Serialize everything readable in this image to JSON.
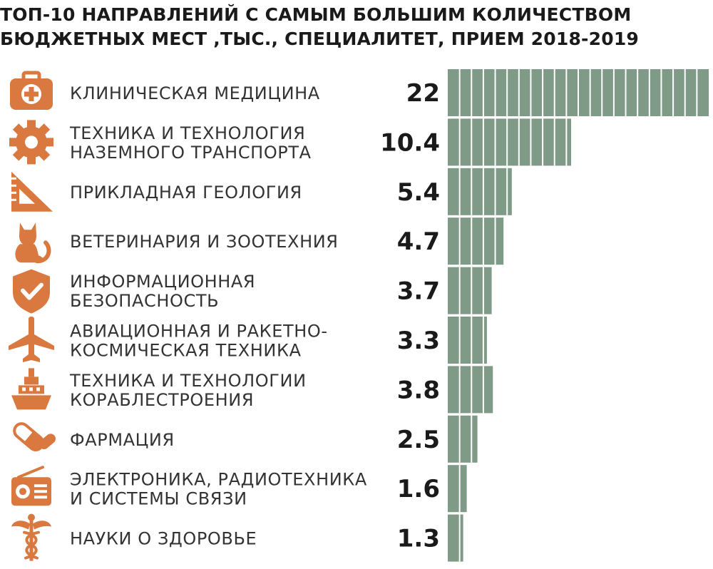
{
  "title_lines": [
    "ТОП-10 НАПРАВЛЕНИЙ С САМЫМ БОЛЬШИМ КОЛИЧЕСТВОМ",
    "БЮДЖЕТНЫХ МЕСТ ,ТЫС., СПЕЦИАЛИТЕТ, ПРИЕМ 2018-2019"
  ],
  "colors": {
    "bar": "#7f9a87",
    "bar_divider": "#ffffff",
    "icon": "#d9783f"
  },
  "chart_data": {
    "type": "bar",
    "orientation": "horizontal",
    "title": "ТОП-10 НАПРАВЛЕНИЙ С САМЫМ БОЛЬШИМ КОЛИЧЕСТВОМ БЮДЖЕТНЫХ МЕСТ ,ТЫС., СПЕЦИАЛИТЕТ, ПРИЕМ 2018-2019",
    "categories": [
      [
        "КЛИНИЧЕСКАЯ МЕДИЦИНА"
      ],
      [
        "ТЕХНИКА И ТЕХНОЛОГИЯ",
        "НАЗЕМНОГО ТРАНСПОРТА"
      ],
      [
        "ПРИКЛАДНАЯ ГЕОЛОГИЯ"
      ],
      [
        "ВЕТЕРИНАРИЯ И ЗООТЕХНИЯ"
      ],
      [
        "ИНФОРМАЦИОННАЯ",
        "БЕЗОПАСНОСТЬ"
      ],
      [
        "АВИАЦИОННАЯ И РАКЕТНО-",
        "КОСМИЧЕСКАЯ ТЕХНИКА"
      ],
      [
        "ТЕХНИКА И ТЕХНОЛОГИИ",
        "КОРАБЛЕСТРОЕНИЯ"
      ],
      [
        "ФАРМАЦИЯ"
      ],
      [
        "ЭЛЕКТРОНИКА, РАДИОТЕХНИКА",
        "И СИСТЕМЫ СВЯЗИ"
      ],
      [
        "НАУКИ О ЗДОРОВЬЕ"
      ]
    ],
    "value_labels": [
      "22",
      "10.4",
      "5.4",
      "4.7",
      "3.7",
      "3.3",
      "3.8",
      "2.5",
      "1.6",
      "1.3"
    ],
    "values": [
      22,
      10.4,
      5.4,
      4.7,
      3.7,
      3.3,
      3.8,
      2.5,
      1.6,
      1.3
    ],
    "icons": [
      "medkit-icon",
      "gear-icon",
      "set-square-icon",
      "cat-icon",
      "shield-check-icon",
      "airplane-icon",
      "ship-icon",
      "pill-icon",
      "radio-icon",
      "caduceus-icon"
    ],
    "xlim": [
      0,
      22
    ],
    "grid": false,
    "legend": "none"
  }
}
